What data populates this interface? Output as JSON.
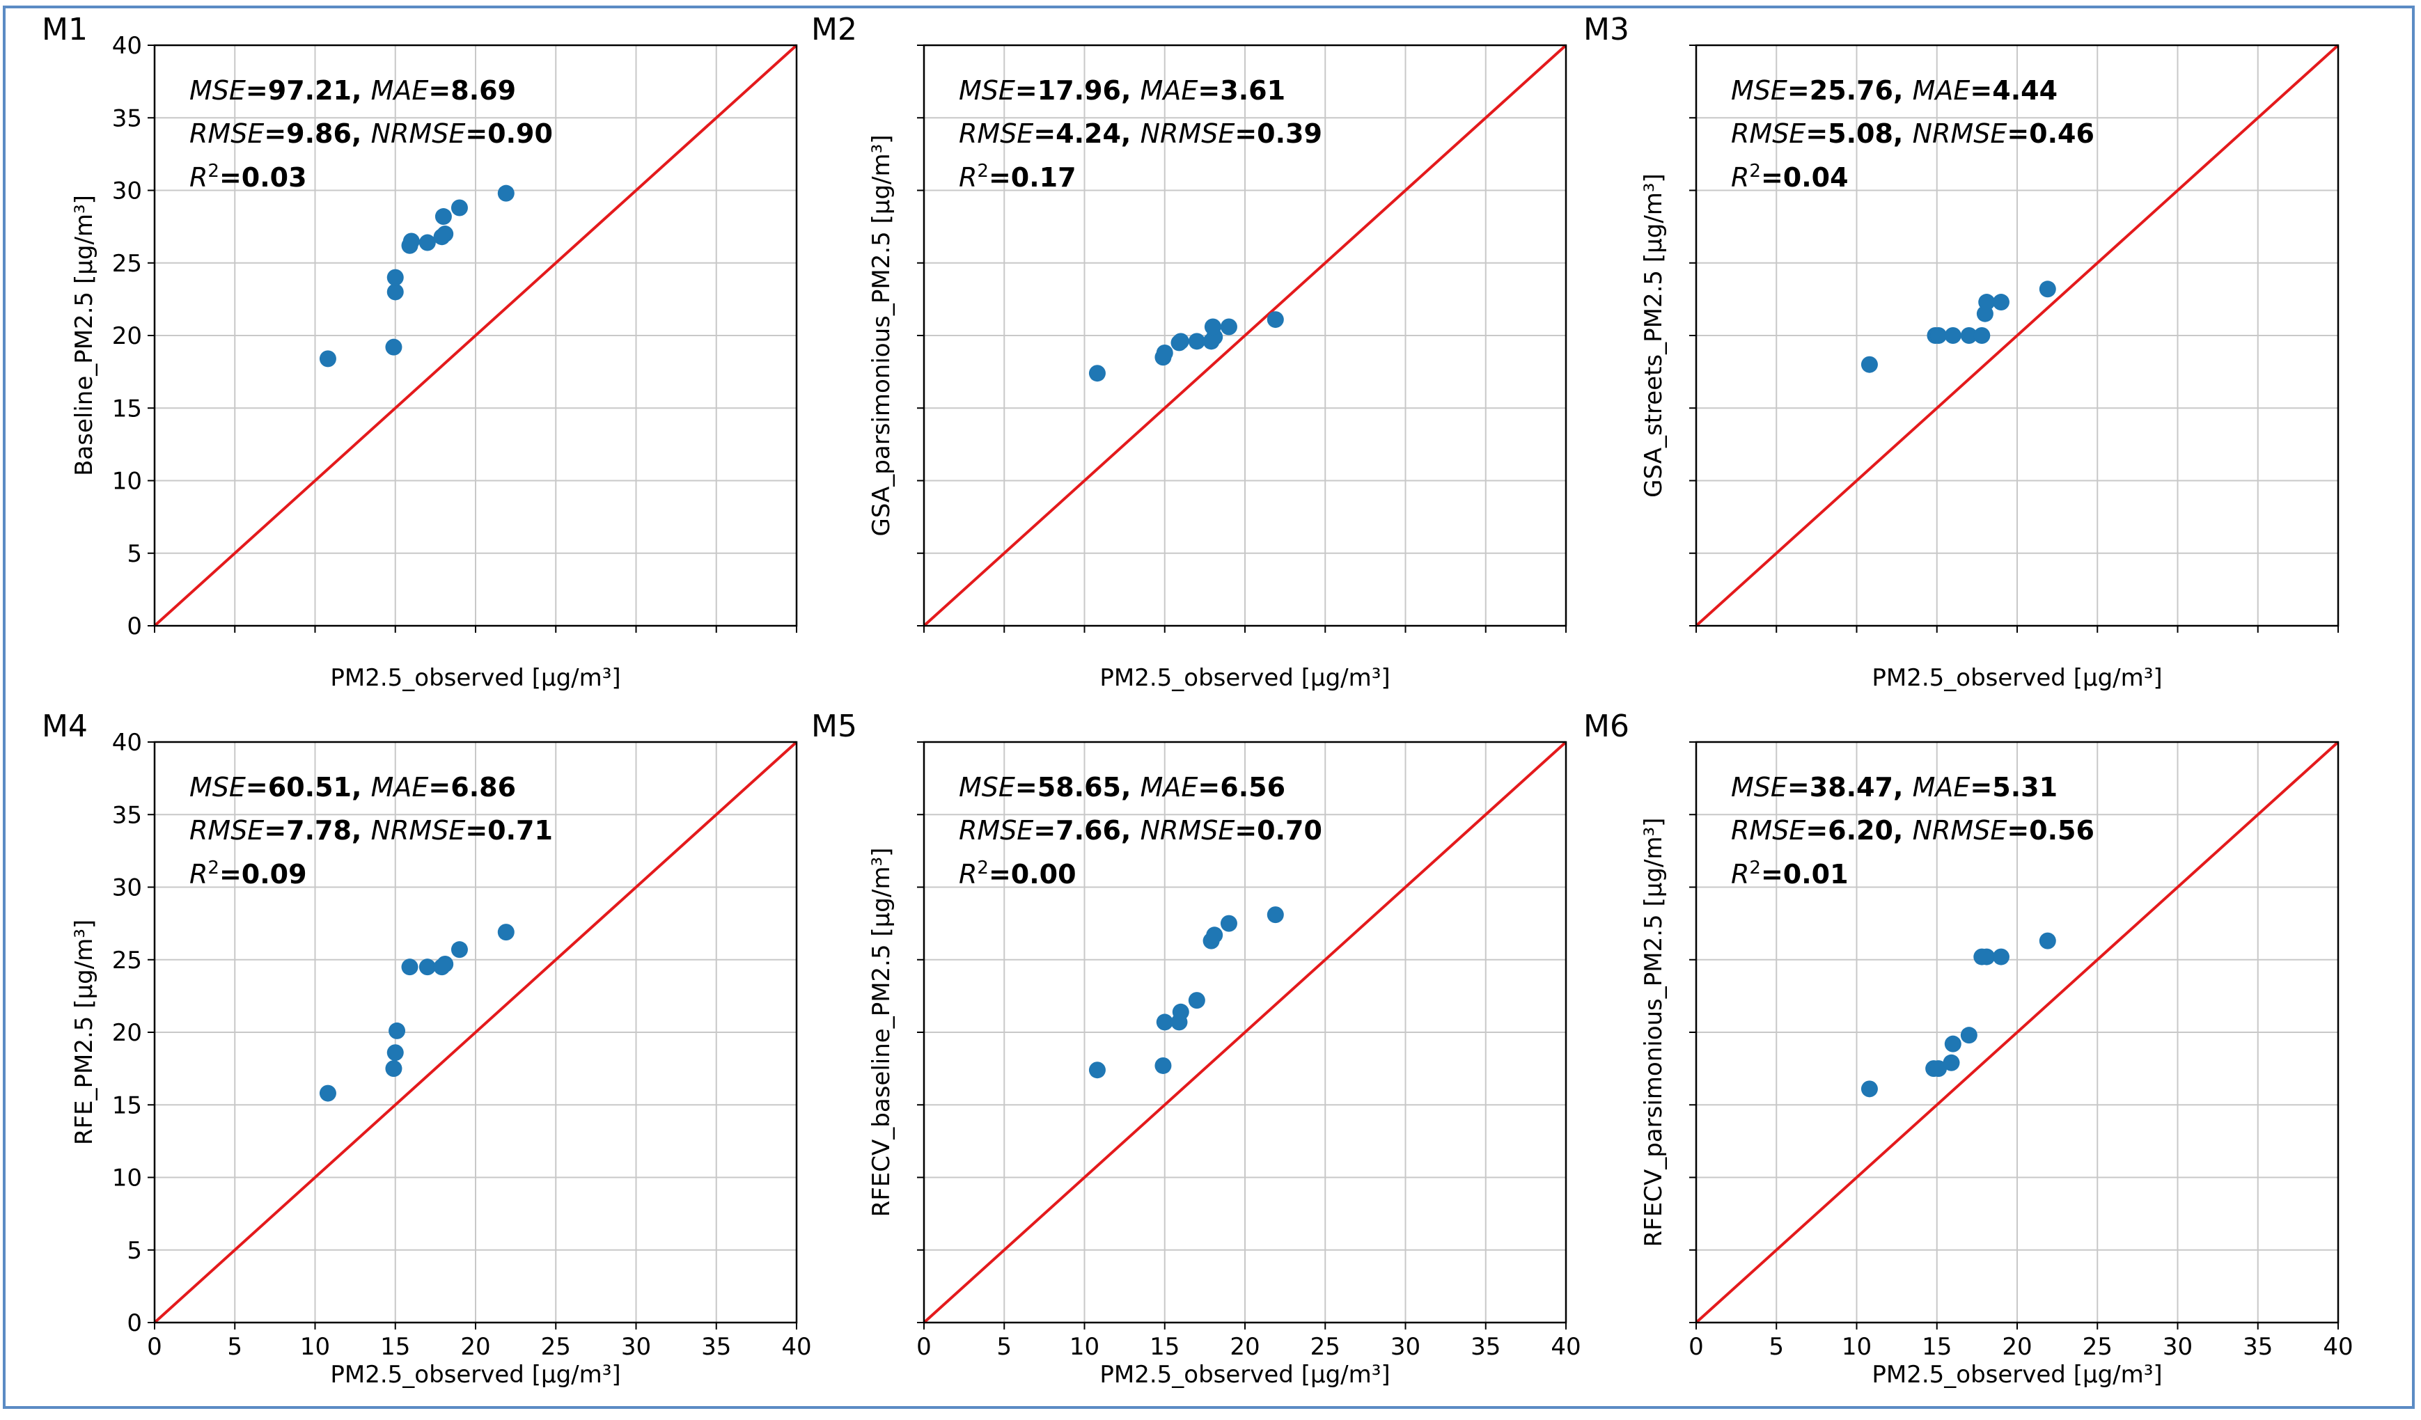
{
  "frame_color": "#5b8bc4",
  "identity_color": "#e41a1c",
  "point_color": "#1f77b4",
  "grid_color": "#c8c8c8",
  "chart_data": [
    {
      "type": "scatter",
      "tag": "M1",
      "xlabel": "PM2.5_observed [µg/m³]",
      "ylabel": "Baseline_PM2.5 [µg/m³]",
      "xlim": [
        0,
        40
      ],
      "ylim": [
        0,
        40
      ],
      "xticks": [
        0,
        5,
        10,
        15,
        20,
        25,
        30,
        35,
        40
      ],
      "yticks": [
        0,
        5,
        10,
        15,
        20,
        25,
        30,
        35,
        40
      ],
      "show_xtick_labels": false,
      "show_ytick_labels": true,
      "metrics": {
        "mse": "97.21",
        "mae": "8.69",
        "rmse": "9.86",
        "nrmse": "0.90",
        "r2": "0.03"
      },
      "points": [
        [
          10.8,
          18.4
        ],
        [
          14.9,
          19.2
        ],
        [
          15.0,
          23.0
        ],
        [
          15.0,
          24.0
        ],
        [
          15.9,
          26.2
        ],
        [
          16.0,
          26.5
        ],
        [
          17.0,
          26.4
        ],
        [
          17.9,
          26.8
        ],
        [
          18.1,
          27.0
        ],
        [
          18.0,
          28.2
        ],
        [
          19.0,
          28.8
        ],
        [
          21.9,
          29.8
        ]
      ]
    },
    {
      "type": "scatter",
      "tag": "M2",
      "xlabel": "PM2.5_observed [µg/m³]",
      "ylabel": "GSA_parsimonious_PM2.5 [µg/m³]",
      "xlim": [
        0,
        40
      ],
      "ylim": [
        0,
        40
      ],
      "xticks": [
        0,
        5,
        10,
        15,
        20,
        25,
        30,
        35,
        40
      ],
      "yticks": [
        0,
        5,
        10,
        15,
        20,
        25,
        30,
        35,
        40
      ],
      "show_xtick_labels": false,
      "show_ytick_labels": false,
      "metrics": {
        "mse": "17.96",
        "mae": "3.61",
        "rmse": "4.24",
        "nrmse": "0.39",
        "r2": "0.17"
      },
      "points": [
        [
          10.8,
          17.4
        ],
        [
          14.9,
          18.5
        ],
        [
          15.0,
          18.8
        ],
        [
          15.9,
          19.5
        ],
        [
          16.0,
          19.6
        ],
        [
          17.0,
          19.6
        ],
        [
          17.9,
          19.6
        ],
        [
          18.1,
          19.9
        ],
        [
          18.0,
          20.6
        ],
        [
          19.0,
          20.6
        ],
        [
          21.9,
          21.1
        ]
      ]
    },
    {
      "type": "scatter",
      "tag": "M3",
      "xlabel": "PM2.5_observed [µg/m³]",
      "ylabel": "GSA_streets_PM2.5 [µg/m³]",
      "xlim": [
        0,
        40
      ],
      "ylim": [
        0,
        40
      ],
      "xticks": [
        0,
        5,
        10,
        15,
        20,
        25,
        30,
        35,
        40
      ],
      "yticks": [
        0,
        5,
        10,
        15,
        20,
        25,
        30,
        35,
        40
      ],
      "show_xtick_labels": false,
      "show_ytick_labels": false,
      "metrics": {
        "mse": "25.76",
        "mae": "4.44",
        "rmse": "5.08",
        "nrmse": "0.46",
        "r2": "0.04"
      },
      "points": [
        [
          10.8,
          18.0
        ],
        [
          14.9,
          20.0
        ],
        [
          15.1,
          20.0
        ],
        [
          16.0,
          20.0
        ],
        [
          17.0,
          20.0
        ],
        [
          17.8,
          20.0
        ],
        [
          18.0,
          21.5
        ],
        [
          18.1,
          22.3
        ],
        [
          19.0,
          22.3
        ],
        [
          21.9,
          23.2
        ]
      ]
    },
    {
      "type": "scatter",
      "tag": "M4",
      "xlabel": "PM2.5_observed [µg/m³]",
      "ylabel": "RFE_PM2.5 [µg/m³]",
      "xlim": [
        0,
        40
      ],
      "ylim": [
        0,
        40
      ],
      "xticks": [
        0,
        5,
        10,
        15,
        20,
        25,
        30,
        35,
        40
      ],
      "yticks": [
        0,
        5,
        10,
        15,
        20,
        25,
        30,
        35,
        40
      ],
      "show_xtick_labels": true,
      "show_ytick_labels": true,
      "metrics": {
        "mse": "60.51",
        "mae": "6.86",
        "rmse": "7.78",
        "nrmse": "0.71",
        "r2": "0.09"
      },
      "points": [
        [
          10.8,
          15.8
        ],
        [
          14.9,
          17.5
        ],
        [
          15.0,
          18.6
        ],
        [
          15.1,
          20.1
        ],
        [
          15.9,
          24.5
        ],
        [
          17.0,
          24.5
        ],
        [
          17.9,
          24.5
        ],
        [
          18.1,
          24.7
        ],
        [
          19.0,
          25.7
        ],
        [
          21.9,
          26.9
        ]
      ]
    },
    {
      "type": "scatter",
      "tag": "M5",
      "xlabel": "PM2.5_observed [µg/m³]",
      "ylabel": "RFECV_baseline_PM2.5 [µg/m³]",
      "xlim": [
        0,
        40
      ],
      "ylim": [
        0,
        40
      ],
      "xticks": [
        0,
        5,
        10,
        15,
        20,
        25,
        30,
        35,
        40
      ],
      "yticks": [
        0,
        5,
        10,
        15,
        20,
        25,
        30,
        35,
        40
      ],
      "show_xtick_labels": true,
      "show_ytick_labels": false,
      "metrics": {
        "mse": "58.65",
        "mae": "6.56",
        "rmse": "7.66",
        "nrmse": "0.70",
        "r2": "0.00"
      },
      "points": [
        [
          10.8,
          17.4
        ],
        [
          14.9,
          17.7
        ],
        [
          15.0,
          20.7
        ],
        [
          15.9,
          20.7
        ],
        [
          16.0,
          21.4
        ],
        [
          17.0,
          22.2
        ],
        [
          17.9,
          26.3
        ],
        [
          18.1,
          26.7
        ],
        [
          19.0,
          27.5
        ],
        [
          21.9,
          28.1
        ]
      ]
    },
    {
      "type": "scatter",
      "tag": "M6",
      "xlabel": "PM2.5_observed [µg/m³]",
      "ylabel": "RFECV_parsimonious_PM2.5 [µg/m³]",
      "xlim": [
        0,
        40
      ],
      "ylim": [
        0,
        40
      ],
      "xticks": [
        0,
        5,
        10,
        15,
        20,
        25,
        30,
        35,
        40
      ],
      "yticks": [
        0,
        5,
        10,
        15,
        20,
        25,
        30,
        35,
        40
      ],
      "show_xtick_labels": true,
      "show_ytick_labels": false,
      "metrics": {
        "mse": "38.47",
        "mae": "5.31",
        "rmse": "6.20",
        "nrmse": "0.56",
        "r2": "0.01"
      },
      "points": [
        [
          10.8,
          16.1
        ],
        [
          14.8,
          17.5
        ],
        [
          15.1,
          17.5
        ],
        [
          15.9,
          17.9
        ],
        [
          16.0,
          19.2
        ],
        [
          17.0,
          19.8
        ],
        [
          17.8,
          25.2
        ],
        [
          18.1,
          25.2
        ],
        [
          19.0,
          25.2
        ],
        [
          21.9,
          26.3
        ]
      ]
    }
  ]
}
